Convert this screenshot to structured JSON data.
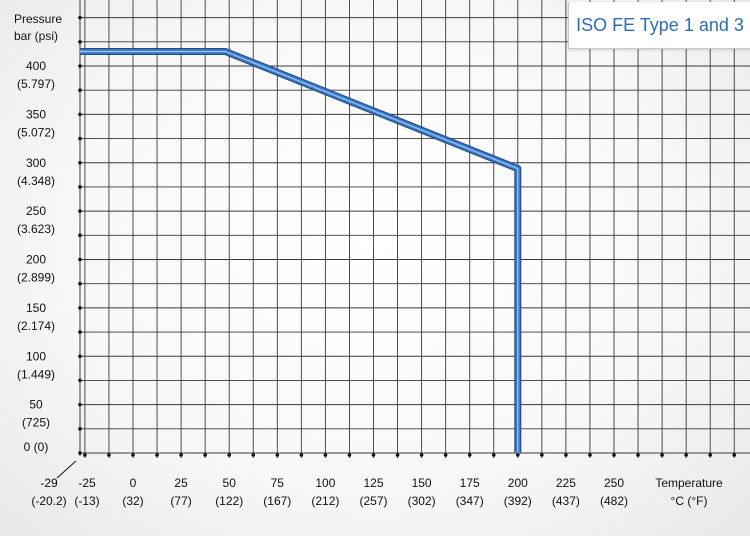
{
  "title": "ISO FE Type 1 and 3",
  "y_axis": {
    "label_line1": "Pressure",
    "label_line2": "bar (psi)"
  },
  "x_axis": {
    "label_line1": "Temperature",
    "label_line2": "°C (°F)"
  },
  "colors": {
    "curve": "#3d7cc9",
    "curve_edge": "#1f4f8f",
    "grid": "#3a3a3a",
    "title": "#2c6db6"
  },
  "chart_data": {
    "type": "line",
    "title": "ISO FE Type 1 and 3",
    "xlabel": "Temperature °C (°F)",
    "ylabel": "Pressure bar (psi)",
    "xlim": [
      -29,
      250
    ],
    "ylim": [
      0,
      420
    ],
    "x_ticks": [
      {
        "value": -29,
        "label1": "-29",
        "label2": "(-20.2)"
      },
      {
        "value": -25,
        "label1": "-25",
        "label2": "(-13)"
      },
      {
        "value": 0,
        "label1": "0",
        "label2": "(32)"
      },
      {
        "value": 25,
        "label1": "25",
        "label2": "(77)"
      },
      {
        "value": 50,
        "label1": "50",
        "label2": "(122)"
      },
      {
        "value": 75,
        "label1": "75",
        "label2": "(167)"
      },
      {
        "value": 100,
        "label1": "100",
        "label2": "(212)"
      },
      {
        "value": 125,
        "label1": "125",
        "label2": "(257)"
      },
      {
        "value": 150,
        "label1": "150",
        "label2": "(302)"
      },
      {
        "value": 175,
        "label1": "175",
        "label2": "(347)"
      },
      {
        "value": 200,
        "label1": "200",
        "label2": "(392)"
      },
      {
        "value": 225,
        "label1": "225",
        "label2": "(437)"
      },
      {
        "value": 250,
        "label1": "250",
        "label2": "(482)"
      }
    ],
    "y_ticks": [
      {
        "value": 0,
        "label1": "0 (0)",
        "label2": ""
      },
      {
        "value": 50,
        "label1": "50",
        "label2": "(725)"
      },
      {
        "value": 100,
        "label1": "100",
        "label2": "(1.449)"
      },
      {
        "value": 150,
        "label1": "150",
        "label2": "(2.174)"
      },
      {
        "value": 200,
        "label1": "200",
        "label2": "(2.899)"
      },
      {
        "value": 250,
        "label1": "250",
        "label2": "(3.623)"
      },
      {
        "value": 300,
        "label1": "300",
        "label2": "(4.348)"
      },
      {
        "value": 350,
        "label1": "350",
        "label2": "(5.072)"
      },
      {
        "value": 400,
        "label1": "400",
        "label2": "(5.797)"
      }
    ],
    "series": [
      {
        "points": [
          {
            "x": -29,
            "y": 415
          },
          {
            "x": 48,
            "y": 415
          },
          {
            "x": 200,
            "y": 294
          },
          {
            "x": 200,
            "y": 0
          }
        ]
      }
    ]
  }
}
